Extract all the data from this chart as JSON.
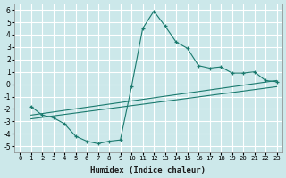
{
  "xlabel": "Humidex (Indice chaleur)",
  "bg_color": "#cce8ea",
  "grid_color": "#ffffff",
  "line_color": "#1a7a6e",
  "xlim": [
    -0.5,
    23.5
  ],
  "ylim": [
    -5.5,
    6.5
  ],
  "xticks": [
    0,
    1,
    2,
    3,
    4,
    5,
    6,
    7,
    8,
    9,
    10,
    11,
    12,
    13,
    14,
    15,
    16,
    17,
    18,
    19,
    20,
    21,
    22,
    23
  ],
  "yticks": [
    -5,
    -4,
    -3,
    -2,
    -1,
    0,
    1,
    2,
    3,
    4,
    5,
    6
  ],
  "series1_x": [
    1,
    2,
    3,
    4,
    5,
    6,
    7,
    8,
    9,
    10,
    11,
    12,
    13,
    14,
    15,
    16,
    17,
    18,
    19,
    20,
    21,
    22,
    23
  ],
  "series1_y": [
    -1.8,
    -2.5,
    -2.7,
    -3.2,
    -4.2,
    -4.6,
    -4.8,
    -4.6,
    -4.5,
    -0.2,
    4.5,
    5.9,
    4.7,
    3.4,
    2.9,
    1.5,
    1.3,
    1.4,
    0.9,
    0.9,
    1.0,
    0.3,
    0.2
  ],
  "line1_x": [
    1,
    23
  ],
  "line1_y": [
    -2.5,
    0.3
  ],
  "line2_x": [
    1,
    23
  ],
  "line2_y": [
    -2.8,
    -0.2
  ]
}
